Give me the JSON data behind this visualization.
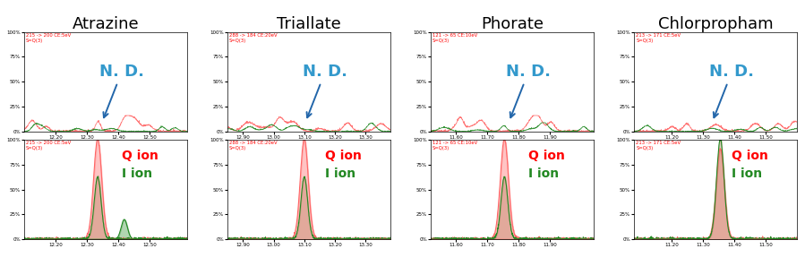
{
  "compounds": [
    "Atrazine",
    "Triallate",
    "Phorate",
    "Chlorpropham"
  ],
  "top_labels": [
    "215 -> 200 CE:5eV\nS=Q(3)",
    "288 -> 184 CE:20eV\nS=Q(3)",
    "121 -> 65 CE:10eV\nS=Q(3)",
    "213 -> 171 CE:5eV\nS=Q(3)"
  ],
  "x_ranges": {
    "Atrazine": [
      12.1,
      12.62
    ],
    "Triallate": [
      12.85,
      13.38
    ],
    "Phorate": [
      11.52,
      12.04
    ],
    "Chlorpropham": [
      11.08,
      11.6
    ]
  },
  "x_peaks_bottom": {
    "Atrazine": 12.335,
    "Triallate": 13.1,
    "Phorate": 11.755,
    "Chlorpropham": 11.355
  },
  "x_ticks": {
    "Atrazine": [
      12.2,
      12.3,
      12.4,
      12.5
    ],
    "Triallate": [
      12.9,
      13.0,
      13.1,
      13.2,
      13.3
    ],
    "Phorate": [
      11.6,
      11.7,
      11.8,
      11.9
    ],
    "Chlorpropham": [
      11.2,
      11.3,
      11.4,
      11.5
    ]
  },
  "background_color": "#ffffff",
  "red_color": "#ff6666",
  "green_color": "#228822",
  "nd_color": "#3399cc",
  "nd_arrow_color": "#2266aa",
  "title_fontsize": 13,
  "nd_fontsize": 13,
  "ion_fontsize": 10
}
